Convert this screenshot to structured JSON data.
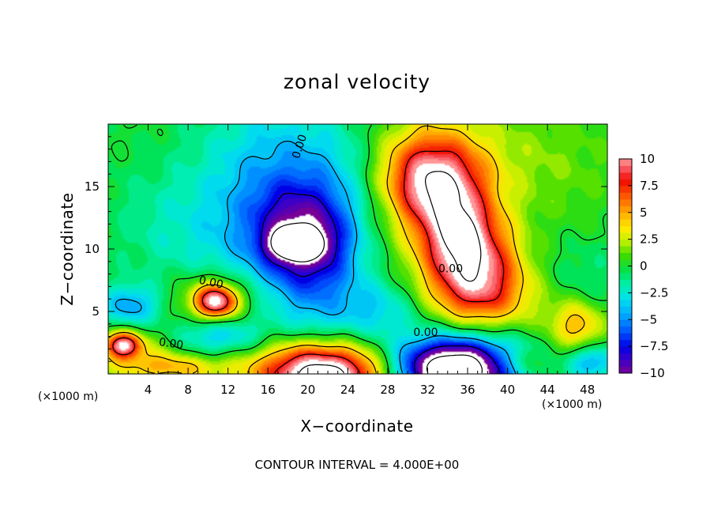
{
  "chart_data": {
    "type": "heatmap",
    "title": "zonal velocity",
    "xlabel": "X−coordinate",
    "ylabel": "Z−coordinate",
    "x_unit_left": "(×1000 m)",
    "x_unit_right": "(×1000 m)",
    "xlim": [
      0,
      50
    ],
    "ylim": [
      0,
      20
    ],
    "x_ticks": [
      {
        "value": 4,
        "label": "4"
      },
      {
        "value": 8,
        "label": "8"
      },
      {
        "value": 12,
        "label": "12"
      },
      {
        "value": 16,
        "label": "16"
      },
      {
        "value": 20,
        "label": "20"
      },
      {
        "value": 24,
        "label": "24"
      },
      {
        "value": 28,
        "label": "28"
      },
      {
        "value": 32,
        "label": "32"
      },
      {
        "value": 36,
        "label": "36"
      },
      {
        "value": 40,
        "label": "40"
      },
      {
        "value": 44,
        "label": "44"
      },
      {
        "value": 48,
        "label": "48"
      }
    ],
    "y_ticks": [
      {
        "value": 5,
        "label": "5"
      },
      {
        "value": 10,
        "label": "10"
      },
      {
        "value": 15,
        "label": "15"
      }
    ],
    "colorbar": {
      "range": [
        -10,
        10
      ],
      "ticks": [
        {
          "value": 10,
          "label": "10"
        },
        {
          "value": 7.5,
          "label": "7.5"
        },
        {
          "value": 5,
          "label": "5"
        },
        {
          "value": 2.5,
          "label": "2.5"
        },
        {
          "value": 0,
          "label": "0"
        },
        {
          "value": -2.5,
          "label": "−2.5"
        },
        {
          "value": -5,
          "label": "−5"
        },
        {
          "value": -7.5,
          "label": "−7.5"
        },
        {
          "value": -10,
          "label": "−10"
        }
      ]
    },
    "contour_labels": [
      {
        "x": 19.2,
        "z": 18.2,
        "text": "0.00",
        "rotate": -72
      },
      {
        "x": 10.3,
        "z": 7.3,
        "text": "0.00",
        "rotate": 12
      },
      {
        "x": 6.3,
        "z": 2.4,
        "text": "0.00",
        "rotate": 8
      },
      {
        "x": 31.8,
        "z": 3.3,
        "text": "0.00",
        "rotate": 0
      },
      {
        "x": 34.3,
        "z": 8.4,
        "text": "0.00",
        "rotate": 0
      }
    ],
    "contour_interval_text": "CONTOUR INTERVAL = 4.000E+00",
    "features": [
      {
        "x": 18.8,
        "z": 10.4,
        "u": -12,
        "sx": 1.6,
        "sy": 0.8
      },
      {
        "x": 19.8,
        "z": 11.0,
        "u": -7.5,
        "sx": 3.6,
        "sy": 2.8
      },
      {
        "x": 15.8,
        "z": 15.0,
        "u": -4.0,
        "sx": 5.0,
        "sy": 5.0
      },
      {
        "x": 21.5,
        "z": 6.0,
        "u": -3.5,
        "sx": 3.6,
        "sy": 4.5
      },
      {
        "x": 23.0,
        "z": 17.0,
        "u": -2.0,
        "sx": 4.0,
        "sy": 3.0
      },
      {
        "x": 27.5,
        "z": 5.2,
        "u": -2.5,
        "sx": 2.5,
        "sy": 1.6
      },
      {
        "x": 34.5,
        "z": 12.5,
        "u": 8.5,
        "sx": 3.0,
        "sy": 3.4
      },
      {
        "x": 36.8,
        "z": 8.6,
        "u": 7.8,
        "sx": 3.0,
        "sy": 2.6
      },
      {
        "x": 31.5,
        "z": 15.6,
        "u": 6.5,
        "sx": 3.0,
        "sy": 2.4
      },
      {
        "x": 35.2,
        "z": 11.3,
        "u": 3.5,
        "sx": 1.0,
        "sy": 1.0
      },
      {
        "x": 38.5,
        "z": 6.0,
        "u": 3.5,
        "sx": 4.0,
        "sy": 2.0
      },
      {
        "x": 33.0,
        "z": 17.5,
        "u": 2.5,
        "sx": 6.0,
        "sy": 3.0
      },
      {
        "x": 45.0,
        "z": 16.5,
        "u": 1.2,
        "sx": 5.0,
        "sy": 4.0
      },
      {
        "x": 10.8,
        "z": 5.8,
        "u": 9.0,
        "sx": 1.4,
        "sy": 0.9
      },
      {
        "x": 10.6,
        "z": 6.0,
        "u": 3.5,
        "sx": 3.0,
        "sy": 1.5
      },
      {
        "x": 1.5,
        "z": 2.3,
        "u": 9.0,
        "sx": 1.2,
        "sy": 0.7
      },
      {
        "x": 2.5,
        "z": 2.0,
        "u": 2.5,
        "sx": 3.5,
        "sy": 1.4
      },
      {
        "x": 21.5,
        "z": -0.2,
        "u": 14.0,
        "sx": 4.2,
        "sy": 1.8
      },
      {
        "x": 23.5,
        "z": 1.2,
        "u": 2.5,
        "sx": 8.0,
        "sy": 1.8
      },
      {
        "x": 35.0,
        "z": 0.2,
        "u": -14.0,
        "sx": 4.0,
        "sy": 1.6
      },
      {
        "x": 33.0,
        "z": 1.5,
        "u": -4.0,
        "sx": 6.5,
        "sy": 1.8
      },
      {
        "x": 2.2,
        "z": 5.4,
        "u": -4.5,
        "sx": 2.2,
        "sy": 1.2
      },
      {
        "x": 11.0,
        "z": 3.0,
        "u": -4.0,
        "sx": 3.5,
        "sy": 1.2
      },
      {
        "x": 9.0,
        "z": 10.0,
        "u": -1.2,
        "sx": 5.0,
        "sy": 3.0
      },
      {
        "x": 5.0,
        "z": 13.0,
        "u": -0.9,
        "sx": 4.0,
        "sy": 3.0
      },
      {
        "x": 47.0,
        "z": 3.8,
        "u": 5.0,
        "sx": 2.0,
        "sy": 1.5
      },
      {
        "x": 48.5,
        "z": 1.0,
        "u": -4.5,
        "sx": 2.0,
        "sy": 1.0
      },
      {
        "x": 47.5,
        "z": 7.5,
        "u": -1.2,
        "sx": 3.0,
        "sy": 2.5
      },
      {
        "x": 41.0,
        "z": 0.8,
        "u": 3.0,
        "sx": 3.0,
        "sy": 0.9
      },
      {
        "x": 6.5,
        "z": 0.5,
        "u": 4.0,
        "sx": 4.0,
        "sy": 0.8
      },
      {
        "x": 26.0,
        "z": 10.0,
        "u": 0.8,
        "sx": 3.0,
        "sy": 3.0
      }
    ]
  }
}
